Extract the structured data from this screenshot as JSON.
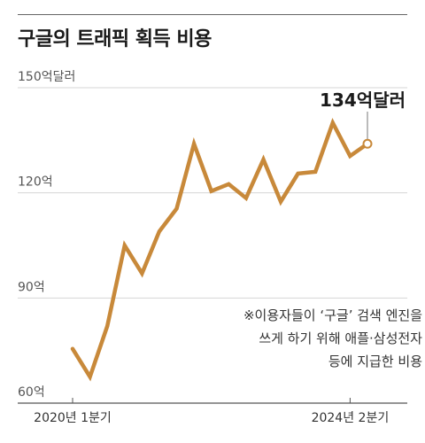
{
  "title": "구글의 트래픽 획득 비용",
  "chart_data": {
    "type": "line",
    "title": "구글의 트래픽 획득 비용",
    "y_ticks": [
      {
        "value": 150,
        "label": "150억달러"
      },
      {
        "value": 120,
        "label": "120억"
      },
      {
        "value": 90,
        "label": "90억"
      },
      {
        "value": 60,
        "label": "60억"
      }
    ],
    "ylim": [
      60,
      150
    ],
    "x_labels": [
      {
        "index": 0,
        "label": "2020년 1분기"
      },
      {
        "index": 16,
        "label": "2024년 2분기"
      }
    ],
    "series": [
      {
        "color": "#c8893a",
        "values": [
          75.5,
          67.5,
          82,
          105,
          97,
          109,
          115.5,
          134,
          120.5,
          122.5,
          118.5,
          129.5,
          117.5,
          125.5,
          126,
          140,
          130.5,
          134
        ]
      }
    ],
    "last_value_label": "134억달러",
    "note_lines": [
      "※이용자들이 ‘구글’ 검색 엔진을",
      "쓰게 하기 위해 애플·삼성전자",
      "등에 지급한 비용"
    ],
    "grid": true
  }
}
